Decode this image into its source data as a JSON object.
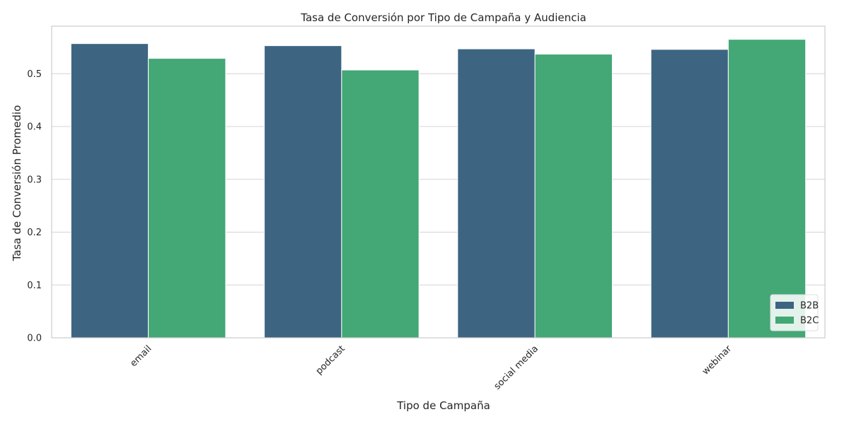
{
  "chart_data": {
    "type": "bar",
    "title": "Tasa de Conversión por Tipo de Campaña y Audiencia",
    "xlabel": "Tipo de Campaña",
    "ylabel": "Tasa de Conversión Promedio",
    "categories": [
      "email",
      "podcast",
      "social media",
      "webinar"
    ],
    "series": [
      {
        "name": "B2B",
        "color": "#3d6582",
        "values": [
          0.557,
          0.553,
          0.547,
          0.546
        ]
      },
      {
        "name": "B2C",
        "color": "#43a776",
        "values": [
          0.529,
          0.507,
          0.537,
          0.565
        ]
      }
    ],
    "ylim": [
      0,
      0.59
    ],
    "yticks": [
      0.0,
      0.1,
      0.2,
      0.3,
      0.4,
      0.5
    ],
    "ytick_labels": [
      "0.0",
      "0.1",
      "0.2",
      "0.3",
      "0.4",
      "0.5"
    ],
    "grid": "horizontal",
    "legend_position": "bottom-right",
    "xtick_rotation": 45
  }
}
